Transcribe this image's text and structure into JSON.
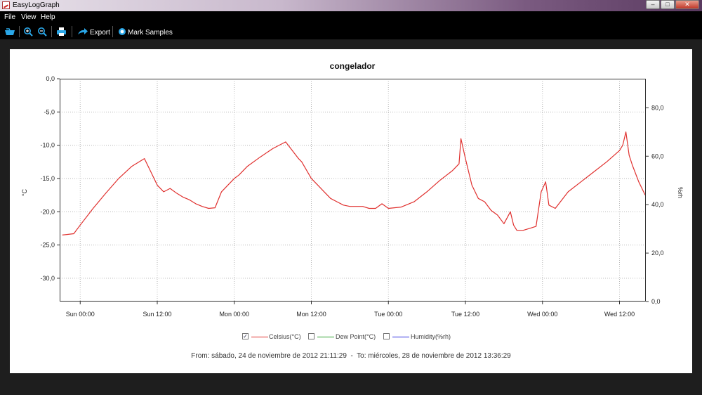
{
  "window": {
    "title": "EasyLogGraph"
  },
  "menu": [
    {
      "id": "file",
      "label": "File"
    },
    {
      "id": "view",
      "label": "View"
    },
    {
      "id": "help",
      "label": "Help"
    }
  ],
  "toolbar": {
    "export_label": "Export",
    "mark_label": "Mark Samples"
  },
  "legend": [
    {
      "label": "Celsius(°C)",
      "checked": true,
      "color": "#e0302e"
    },
    {
      "label": "Dew Point(°C)",
      "checked": false,
      "color": "#2ea02e"
    },
    {
      "label": "Humidity(%rh)",
      "checked": false,
      "color": "#2e2ee0"
    }
  ],
  "footer": {
    "from_label": "From:",
    "from_value": "sábado, 24 de noviembre de 2012 21:11:29",
    "to_label": "To:",
    "to_value": "miércoles, 28 de noviembre de 2012 13:36:29"
  },
  "chart_data": {
    "type": "line",
    "title": "congelador",
    "ylabel": "°C",
    "y2label": "%rh",
    "ylim": [
      -33.5,
      0
    ],
    "y_ticks": [
      "0,0",
      "-5,0",
      "-10,0",
      "-15,0",
      "-20,0",
      "-25,0",
      "-30,0"
    ],
    "y2lim": [
      0,
      92
    ],
    "y2_ticks": [
      "0,0",
      "20,0",
      "40,0",
      "60,0",
      "80,0"
    ],
    "xlim": [
      -3.2,
      88.1
    ],
    "x_ticks": [
      "Sun 00:00",
      "Sun 12:00",
      "Mon 00:00",
      "Mon 12:00",
      "Tue 00:00",
      "Tue 12:00",
      "Wed 00:00",
      "Wed 12:00"
    ],
    "grid": true,
    "series": [
      {
        "name": "Celsius(°C)",
        "color": "#e0302e",
        "x": [
          -2.8,
          -1.0,
          0.0,
          2.0,
          4.0,
          6.0,
          8.0,
          10.0,
          11.0,
          12.0,
          13.0,
          14.0,
          15.0,
          16.0,
          17.0,
          18.0,
          19.0,
          20.0,
          21.0,
          22.0,
          23.0,
          24.0,
          24.7,
          26.0,
          28.0,
          30.0,
          32.0,
          34.0,
          34.5,
          36.0,
          37.0,
          38.0,
          39.0,
          40.0,
          41.0,
          42.0,
          44.0,
          45.0,
          46.0,
          47.0,
          48.0,
          50.0,
          52.0,
          54.0,
          56.0,
          58.0,
          59.0,
          59.3,
          60.0,
          61.0,
          62.0,
          63.0,
          64.0,
          65.0,
          66.0,
          67.0,
          67.5,
          68.0,
          69.0,
          70.0,
          71.0,
          71.8,
          72.5,
          73.0,
          74.0,
          76.0,
          78.0,
          80.0,
          82.0,
          84.0,
          84.5,
          85.0,
          85.5,
          86.0,
          87.0,
          88.0
        ],
        "y": [
          -23.5,
          -23.3,
          -22.0,
          -19.5,
          -17.2,
          -15.0,
          -13.2,
          -12.0,
          -14.0,
          -16.0,
          -17.0,
          -16.5,
          -17.2,
          -17.8,
          -18.2,
          -18.8,
          -19.2,
          -19.5,
          -19.4,
          -17.0,
          -16.0,
          -15.0,
          -14.5,
          -13.2,
          -11.8,
          -10.5,
          -9.5,
          -12.0,
          -12.5,
          -15.0,
          -16.0,
          -17.0,
          -18.0,
          -18.5,
          -19.0,
          -19.2,
          -19.2,
          -19.5,
          -19.5,
          -18.8,
          -19.5,
          -19.3,
          -18.5,
          -17.0,
          -15.3,
          -13.8,
          -12.8,
          -9.0,
          -12.0,
          -16.0,
          -18.0,
          -18.5,
          -19.8,
          -20.5,
          -21.8,
          -20.0,
          -22.0,
          -22.8,
          -22.8,
          -22.5,
          -22.2,
          -17.0,
          -15.5,
          -19.0,
          -19.5,
          -17.0,
          -15.5,
          -14.0,
          -12.5,
          -10.8,
          -10.0,
          -8.0,
          -11.5,
          -13.0,
          -15.5,
          -17.5
        ]
      }
    ]
  }
}
